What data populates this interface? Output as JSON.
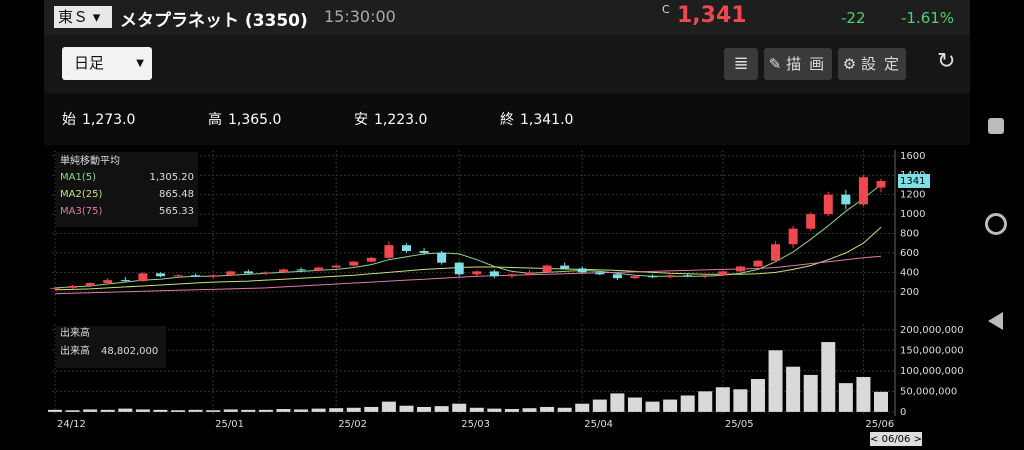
{
  "header": {
    "market": "東Ｓ",
    "name": "メタプラネット (3350)",
    "time": "15:30:00",
    "price_flag": "C",
    "price": "1,341",
    "change": "-22",
    "change_pct": "-1.61%"
  },
  "toolbar": {
    "period": "日足",
    "draw": "描画",
    "settings": "設定"
  },
  "ohlc": [
    {
      "label": "始",
      "value": "1,273.0"
    },
    {
      "label": "高",
      "value": "1,365.0"
    },
    {
      "label": "安",
      "value": "1,223.0"
    },
    {
      "label": "終",
      "value": "1,341.0"
    }
  ],
  "chart_data": [
    {
      "type": "candlestick",
      "legend_title": "単純移動平均",
      "up_color": "#f0484f",
      "down_color": "#7fdfe8",
      "ylim": [
        -70,
        1660
      ],
      "yticks": [
        200,
        400,
        600,
        800,
        1000,
        1200,
        1400,
        1600
      ],
      "grid": true,
      "open": [
        230,
        240,
        260,
        290,
        320,
        310,
        390,
        360,
        370,
        355,
        370,
        410,
        390,
        400,
        430,
        420,
        450,
        470,
        510,
        550,
        680,
        620,
        600,
        500,
        380,
        410,
        360,
        380,
        400,
        470,
        440,
        400,
        380,
        340,
        360,
        350,
        370,
        360,
        370,
        410,
        460,
        520,
        690,
        850,
        1000,
        1200,
        1100,
        1273
      ],
      "high": [
        250,
        270,
        300,
        340,
        350,
        400,
        400,
        380,
        390,
        380,
        420,
        430,
        410,
        440,
        450,
        460,
        480,
        520,
        560,
        720,
        700,
        650,
        620,
        510,
        420,
        430,
        390,
        420,
        480,
        500,
        460,
        410,
        390,
        370,
        380,
        380,
        390,
        380,
        420,
        470,
        530,
        720,
        880,
        1020,
        1230,
        1250,
        1400,
        1365
      ],
      "low": [
        220,
        230,
        250,
        280,
        300,
        300,
        350,
        340,
        350,
        340,
        360,
        380,
        370,
        390,
        400,
        410,
        440,
        460,
        500,
        540,
        600,
        580,
        480,
        360,
        350,
        340,
        340,
        370,
        390,
        430,
        390,
        370,
        320,
        330,
        340,
        340,
        350,
        340,
        360,
        400,
        450,
        510,
        650,
        830,
        980,
        1050,
        1080,
        1223
      ],
      "close": [
        240,
        260,
        290,
        320,
        310,
        390,
        360,
        370,
        355,
        370,
        410,
        390,
        400,
        430,
        420,
        450,
        470,
        510,
        550,
        680,
        620,
        600,
        500,
        380,
        410,
        360,
        380,
        400,
        470,
        440,
        400,
        380,
        340,
        360,
        350,
        370,
        360,
        370,
        410,
        460,
        520,
        690,
        850,
        1000,
        1200,
        1100,
        1380,
        1341
      ],
      "series": [
        {
          "name": "MA1(5)",
          "color": "#8fd68a",
          "value_label": "1,305.20",
          "values": [
            240,
            250,
            260,
            280,
            300,
            320,
            330,
            350,
            360,
            360,
            370,
            380,
            390,
            400,
            410,
            420,
            430,
            450,
            480,
            530,
            560,
            590,
            600,
            590,
            530,
            460,
            410,
            390,
            400,
            410,
            420,
            410,
            390,
            370,
            360,
            360,
            360,
            360,
            370,
            390,
            430,
            510,
            610,
            740,
            880,
            1030,
            1160,
            1305.2
          ]
        },
        {
          "name": "MA2(25)",
          "color": "#c9e07a",
          "value_label": "865.48",
          "values": [
            220,
            225,
            230,
            240,
            250,
            260,
            270,
            280,
            290,
            300,
            305,
            310,
            320,
            330,
            340,
            350,
            360,
            370,
            385,
            400,
            415,
            430,
            440,
            450,
            455,
            455,
            450,
            445,
            440,
            435,
            430,
            425,
            420,
            410,
            400,
            390,
            385,
            380,
            380,
            380,
            385,
            400,
            430,
            470,
            530,
            600,
            700,
            865.48
          ]
        },
        {
          "name": "MA3(75)",
          "color": "#e07ab0",
          "value_label": "565.33",
          "values": [
            180,
            185,
            190,
            195,
            200,
            205,
            210,
            215,
            220,
            225,
            230,
            235,
            240,
            250,
            260,
            270,
            280,
            290,
            300,
            310,
            320,
            330,
            340,
            350,
            360,
            365,
            370,
            375,
            380,
            385,
            390,
            395,
            400,
            405,
            410,
            415,
            420,
            425,
            430,
            435,
            440,
            450,
            470,
            490,
            510,
            530,
            550,
            565.33
          ]
        }
      ]
    },
    {
      "type": "bar",
      "legend_title": "出来高",
      "cursor_label": "< 06/06 >",
      "categories": [
        "24/12",
        null,
        null,
        null,
        null,
        null,
        null,
        null,
        null,
        "25/01",
        null,
        null,
        null,
        null,
        null,
        null,
        "25/02",
        null,
        null,
        null,
        null,
        null,
        null,
        "25/03",
        null,
        null,
        null,
        null,
        null,
        null,
        "25/04",
        null,
        null,
        null,
        null,
        null,
        null,
        null,
        "25/05",
        null,
        null,
        null,
        null,
        null,
        null,
        null,
        "25/06",
        null
      ],
      "ylim": [
        -10000000,
        214000000
      ],
      "yticks": [
        0,
        {
          "value": 50000000,
          "label": "50,000,000"
        },
        {
          "value": 100000000,
          "label": "100,000,000"
        },
        {
          "value": 150000000,
          "label": "150,000,000"
        },
        {
          "value": 200000000,
          "label": "200,000,000"
        }
      ],
      "grid": true,
      "series": [
        {
          "name": "出来高",
          "color": "#d9d9d9",
          "value_label": "48,802,000",
          "values": [
            5000000,
            4000000,
            6000000,
            5000000,
            8000000,
            6000000,
            5000000,
            4000000,
            5000000,
            4000000,
            6000000,
            5000000,
            5000000,
            7000000,
            6000000,
            8000000,
            9000000,
            10000000,
            12000000,
            25000000,
            15000000,
            12000000,
            14000000,
            20000000,
            10000000,
            8000000,
            7000000,
            9000000,
            12000000,
            10000000,
            20000000,
            30000000,
            45000000,
            35000000,
            25000000,
            30000000,
            40000000,
            50000000,
            60000000,
            55000000,
            80000000,
            150000000,
            110000000,
            90000000,
            170000000,
            70000000,
            85000000,
            48802000
          ]
        }
      ]
    }
  ]
}
